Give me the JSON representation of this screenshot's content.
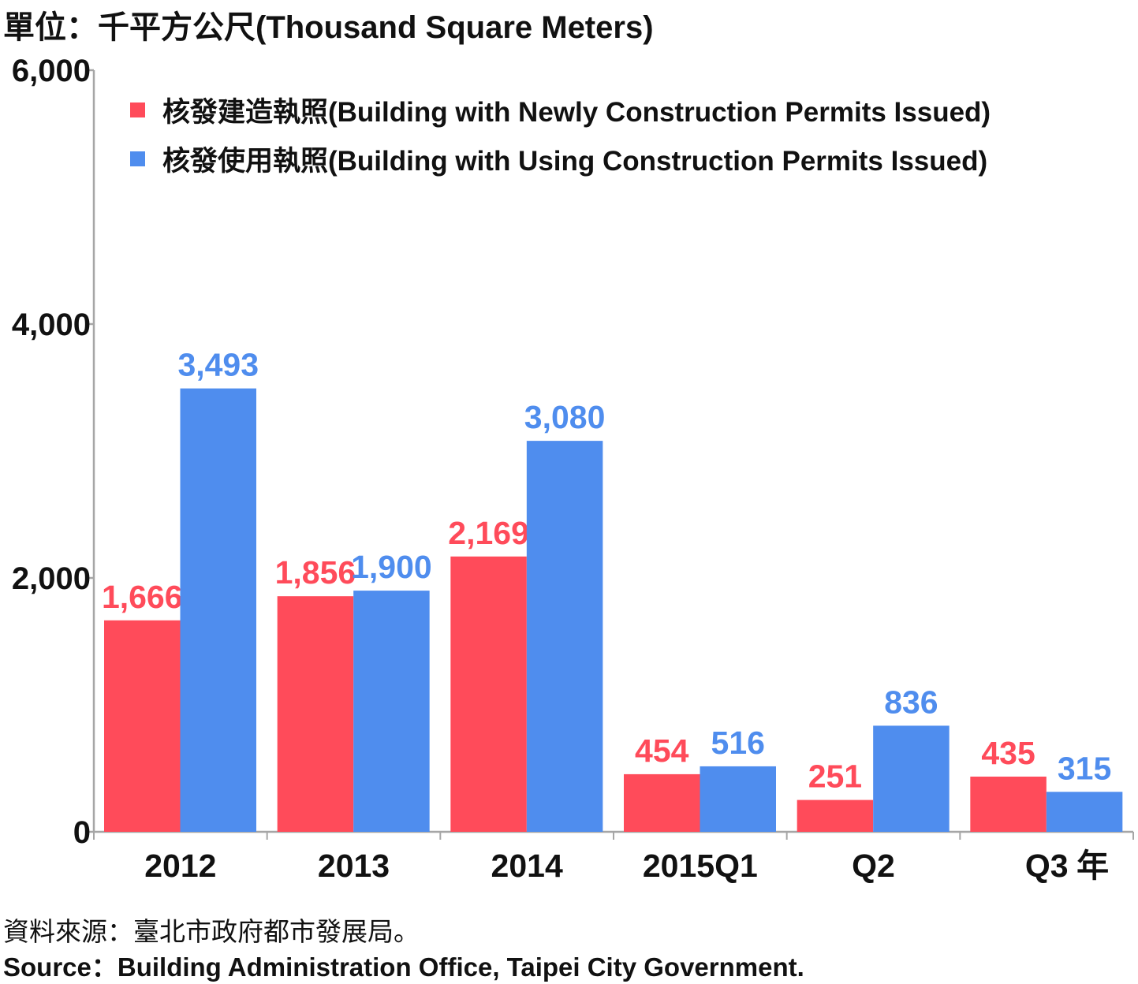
{
  "unit_label": "單位：千平方公尺(Thousand Square Meters)",
  "year_suffix": "年",
  "source": {
    "zh": "資料來源：臺北市政府都市發展局。",
    "en": "Source：Building Administration Office, Taipei City Government."
  },
  "colors": {
    "newly": "#FF4B5A",
    "using": "#4F8DEE",
    "axis": "#A6A6A6",
    "text": "#111111"
  },
  "chart_data": {
    "type": "bar",
    "categories": [
      "2012",
      "2013",
      "2014",
      "2015Q1",
      "Q2",
      "Q3"
    ],
    "series": [
      {
        "name": "核發建造執照(Building with Newly Construction Permits Issued)",
        "values": [
          1666,
          1856,
          2169,
          454,
          251,
          435
        ],
        "labels": [
          "1,666",
          "1,856",
          "2,169",
          "454",
          "251",
          "435"
        ]
      },
      {
        "name": "核發使用執照(Building with Using Construction Permits Issued)",
        "values": [
          3493,
          1900,
          3080,
          516,
          836,
          315
        ],
        "labels": [
          "3,493",
          "1,900",
          "3,080",
          "516",
          "836",
          "315"
        ]
      }
    ],
    "yticks": [
      0,
      2000,
      4000,
      6000
    ],
    "ytick_labels": [
      "0",
      "2,000",
      "4,000",
      "6,000"
    ],
    "ylim": [
      0,
      6000
    ],
    "legend_position": "top-left",
    "grid": false
  }
}
